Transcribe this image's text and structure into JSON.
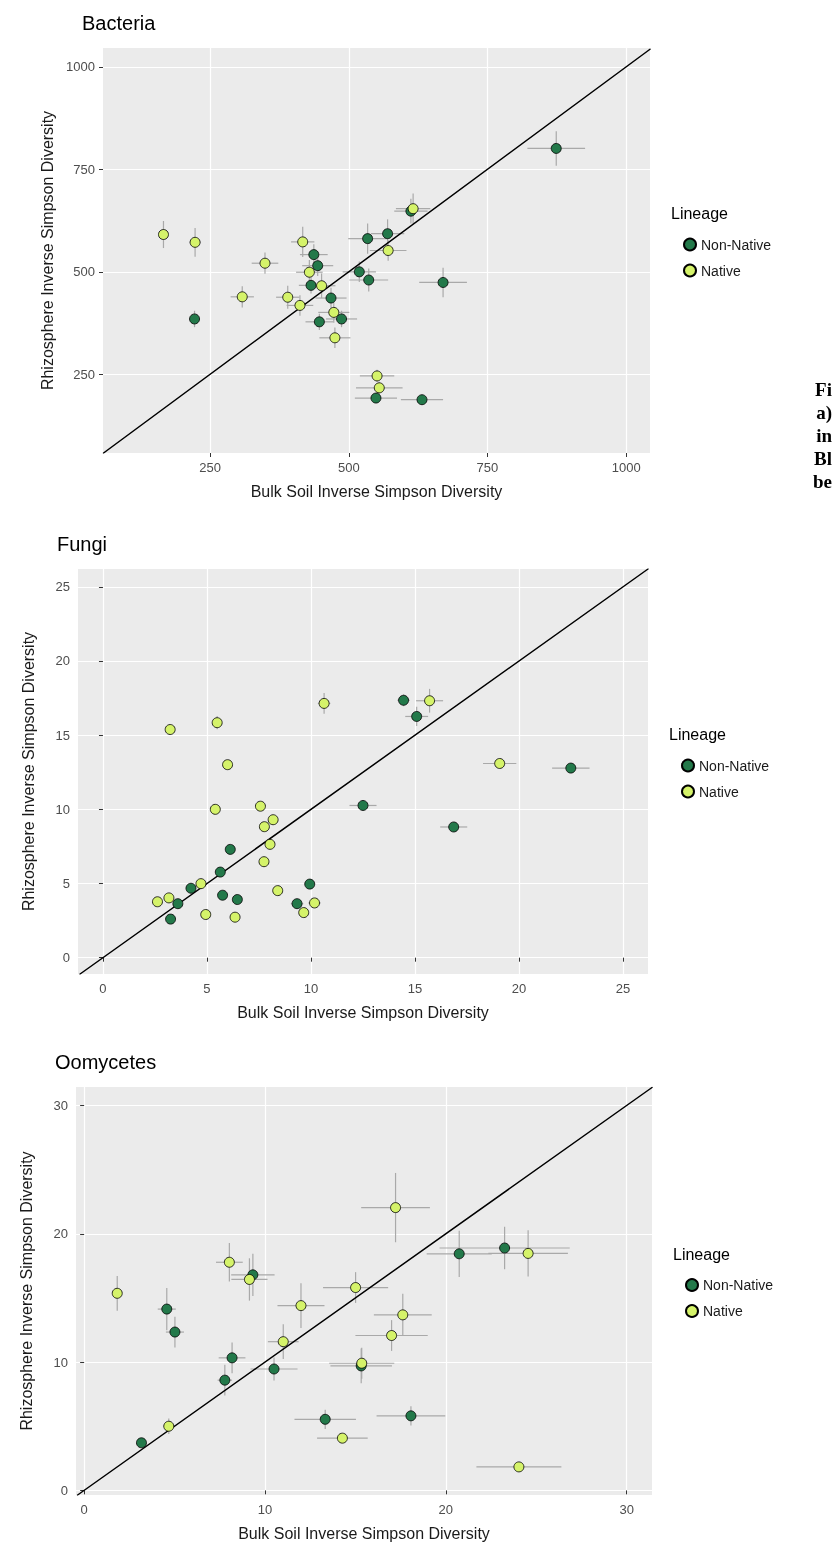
{
  "chart_data": [
    {
      "type": "scatter",
      "title": "Bacteria",
      "xlabel": "Bulk Soil Inverse Simpson Diversity",
      "ylabel": "Rhizosphere Inverse Simpson Diversity",
      "legend_title": "Lineage",
      "legend": "right",
      "grid": true,
      "marker": "circle",
      "xlim": [
        57,
        1043
      ],
      "ylim": [
        58,
        1046
      ],
      "xticks": [
        250,
        500,
        750,
        1000
      ],
      "yticks": [
        250,
        500,
        750,
        1000
      ],
      "annotations": [
        "Fi",
        "a)",
        "in",
        "Bl",
        "be"
      ],
      "series": [
        {
          "name": "Non-Native",
          "color": "#23794a",
          "x": [
            222,
            437,
            444,
            432,
            468,
            447,
            487,
            519,
            534,
            536,
            570,
            612,
            670,
            874,
            549,
            632
          ],
          "values": [
            385,
            542,
            515,
            467,
            436,
            378,
            385,
            500,
            581,
            480,
            593,
            648,
            474,
            801,
            192,
            188
          ],
          "xerrors": [
            8,
            25,
            28,
            22,
            28,
            25,
            28,
            30,
            35,
            35,
            30,
            30,
            43,
            52,
            38,
            38
          ],
          "errors": [
            20,
            25,
            25,
            20,
            25,
            20,
            20,
            25,
            37,
            28,
            35,
            30,
            36,
            42,
            10,
            10
          ]
        },
        {
          "name": "Native",
          "color": "#d5f36a",
          "x": [
            166,
            223,
            349,
            308,
            390,
            412,
            417,
            429,
            451,
            473,
            475,
            571,
            616,
            551,
            555
          ],
          "values": [
            591,
            572,
            521,
            439,
            438,
            418,
            573,
            499,
            466,
            401,
            339,
            552,
            654,
            246,
            217
          ],
          "xerrors": [
            8,
            10,
            24,
            21,
            21,
            24,
            21,
            24,
            25,
            28,
            28,
            33,
            31,
            31,
            42
          ],
          "errors": [
            33,
            35,
            26,
            26,
            28,
            25,
            37,
            30,
            30,
            25,
            25,
            25,
            37,
            15,
            15
          ]
        },
        {
          "type": "line",
          "marker": "none",
          "color": "#000000",
          "x": [
            58,
            1043
          ],
          "values": [
            58,
            1043
          ]
        }
      ]
    },
    {
      "type": "scatter",
      "title": "Fungi",
      "xlabel": "Bulk Soil Inverse Simpson Diversity",
      "ylabel": "Rhizosphere Inverse Simpson Diversity",
      "legend_title": "Lineage",
      "legend": "right",
      "grid": true,
      "marker": "circle",
      "xlim": [
        -1.2,
        26.2
      ],
      "ylim": [
        -1.1,
        26.2
      ],
      "xticks": [
        0,
        5,
        10,
        15,
        20,
        25
      ],
      "yticks": [
        0,
        5,
        10,
        15,
        20,
        25
      ],
      "series": [
        {
          "name": "Non-Native",
          "color": "#23794a",
          "x": [
            14.45,
            15.08,
            12.5,
            16.86,
            22.49,
            6.12,
            5.64,
            4.23,
            3.6,
            3.25,
            5.75,
            6.46,
            9.94,
            9.33
          ],
          "values": [
            17.35,
            16.26,
            10.26,
            8.81,
            12.78,
            7.3,
            5.77,
            4.68,
            3.64,
            2.6,
            4.21,
            3.92,
            4.96,
            3.64
          ],
          "xerrors": [
            0.3,
            0.55,
            0.65,
            0.65,
            0.9,
            null,
            null,
            null,
            null,
            null,
            null,
            null,
            null,
            0.3
          ],
          "errors": [
            0.4,
            0.65,
            0.2,
            0.2,
            0.3,
            null,
            null,
            null,
            null,
            null,
            null,
            null,
            null,
            null
          ]
        },
        {
          "name": "Native",
          "color": "#d5f36a",
          "x": [
            3.23,
            5.49,
            5.99,
            5.4,
            7.57,
            8.18,
            7.76,
            8.03,
            7.74,
            10.63,
            15.7,
            19.07,
            4.71,
            2.62,
            3.17,
            4.94,
            6.35,
            8.4,
            9.65,
            10.17
          ],
          "values": [
            15.38,
            15.84,
            13.01,
            10.0,
            10.21,
            9.3,
            8.83,
            7.64,
            6.47,
            17.14,
            17.32,
            13.09,
            4.99,
            3.77,
            4.03,
            2.91,
            2.73,
            4.52,
            3.04,
            3.69
          ],
          "xerrors": [
            null,
            null,
            null,
            null,
            null,
            null,
            null,
            null,
            null,
            0.3,
            0.65,
            0.8,
            null,
            null,
            null,
            null,
            null,
            null,
            null,
            0.3
          ],
          "errors": [
            null,
            0.45,
            null,
            null,
            null,
            null,
            null,
            null,
            null,
            0.7,
            0.8,
            0.3,
            null,
            null,
            null,
            null,
            null,
            null,
            null,
            null
          ]
        },
        {
          "type": "line",
          "marker": "none",
          "color": "#000000",
          "x": [
            -1.1,
            26.2
          ],
          "values": [
            -1.1,
            26.2
          ]
        }
      ]
    },
    {
      "type": "scatter",
      "title": "Oomycetes",
      "xlabel": "Bulk Soil Inverse Simpson Diversity",
      "ylabel": "Rhizosphere Inverse Simpson Diversity",
      "legend_title": "Lineage",
      "legend": "right",
      "grid": true,
      "marker": "circle",
      "xlim": [
        -0.45,
        31.4
      ],
      "ylim": [
        -0.36,
        31.44
      ],
      "xticks": [
        0,
        10,
        20,
        30
      ],
      "yticks": [
        0,
        10,
        20,
        30
      ],
      "series": [
        {
          "name": "Non-Native",
          "color": "#23794a",
          "x": [
            4.57,
            5.02,
            9.33,
            8.18,
            7.78,
            10.5,
            15.32,
            13.33,
            18.07,
            3.17,
            20.74,
            23.25
          ],
          "values": [
            14.13,
            12.34,
            16.8,
            10.33,
            8.59,
            9.46,
            9.7,
            5.54,
            5.81,
            3.71,
            18.44,
            18.89
          ],
          "xerrors": [
            0.5,
            0.5,
            1.2,
            0.74,
            0.4,
            1.3,
            1.7,
            1.7,
            1.9,
            null,
            1.8,
            3.6
          ],
          "errors": [
            1.65,
            1.2,
            1.65,
            1.2,
            1.2,
            0.9,
            1.35,
            0.75,
            0.75,
            null,
            1.8,
            1.65
          ]
        },
        {
          "name": "Native",
          "color": "#d5f36a",
          "x": [
            1.83,
            8.03,
            9.14,
            11.99,
            11.01,
            15.01,
            17.22,
            17.62,
            17.0,
            15.35,
            4.68,
            14.28,
            24.55,
            24.04
          ],
          "values": [
            15.36,
            17.78,
            16.44,
            14.4,
            11.59,
            15.81,
            22.04,
            13.68,
            12.07,
            9.91,
            5.0,
            4.07,
            18.47,
            1.83
          ],
          "xerrors": [
            null,
            0.74,
            1.0,
            1.3,
            0.85,
            1.8,
            1.9,
            1.6,
            2.0,
            1.8,
            0.3,
            1.4,
            2.2,
            2.35
          ],
          "errors": [
            1.35,
            1.5,
            1.65,
            1.75,
            1.35,
            1.2,
            2.7,
            1.65,
            1.2,
            1.2,
            0.6,
            0.3,
            1.8,
            null
          ]
        },
        {
          "type": "line",
          "marker": "none",
          "color": "#000000",
          "x": [
            -0.36,
            31.4
          ],
          "values": [
            -0.36,
            31.4
          ]
        }
      ]
    }
  ]
}
